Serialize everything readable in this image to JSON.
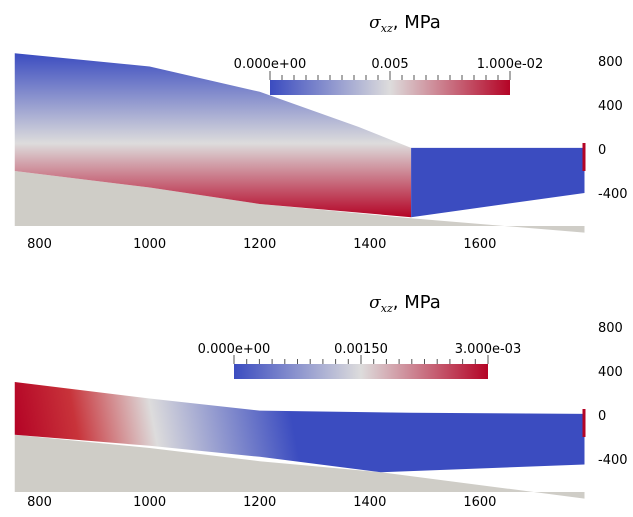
{
  "chart_data": [
    {
      "type": "heatmap",
      "title": {
        "symbol": "σ",
        "subscript": "xz",
        "unit": ", MPa"
      },
      "colorbar": {
        "range": [
          0.0,
          0.01
        ],
        "labels": [
          "0.000e+00",
          "0.005",
          "1.000e-02"
        ],
        "colors": [
          "#3b4cc0",
          "#dddcdc",
          "#b40426"
        ]
      },
      "x_ticks": [
        "800",
        "1000",
        "1200",
        "1400",
        "1600"
      ],
      "y_ticks": [
        "800",
        "400",
        "0",
        "-400"
      ],
      "xlim": [
        750,
        1800
      ],
      "ylim": [
        -700,
        900
      ],
      "domain_top": [
        [
          755,
          870
        ],
        [
          1000,
          750
        ],
        [
          1200,
          520
        ],
        [
          1380,
          200
        ],
        [
          1475,
          10
        ],
        [
          1790,
          10
        ]
      ],
      "domain_bottom": [
        [
          755,
          -200
        ],
        [
          1000,
          -350
        ],
        [
          1200,
          -500
        ],
        [
          1475,
          -620
        ],
        [
          1790,
          -400
        ]
      ],
      "base_surface": [
        [
          755,
          -200
        ],
        [
          1000,
          -350
        ],
        [
          1200,
          -500
        ],
        [
          1475,
          -630
        ],
        [
          1790,
          -760
        ]
      ],
      "stress_field": "increases with depth from the upper surface toward the base, max near x=1475; right section near zero"
    },
    {
      "type": "heatmap",
      "title": {
        "symbol": "σ",
        "subscript": "xz",
        "unit": ", MPa"
      },
      "colorbar": {
        "range": [
          0.0,
          0.003
        ],
        "labels": [
          "0.000e+00",
          "0.00150",
          "3.000e-03"
        ],
        "colors": [
          "#3b4cc0",
          "#dddcdc",
          "#b40426"
        ]
      },
      "x_ticks": [
        "800",
        "1000",
        "1200",
        "1400",
        "1600"
      ],
      "y_ticks": [
        "800",
        "400",
        "0",
        "-400"
      ],
      "xlim": [
        750,
        1800
      ],
      "ylim": [
        -700,
        900
      ],
      "domain_top": [
        [
          755,
          300
        ],
        [
          1000,
          150
        ],
        [
          1200,
          40
        ],
        [
          1475,
          20
        ],
        [
          1790,
          10
        ]
      ],
      "domain_bottom": [
        [
          755,
          -180
        ],
        [
          1000,
          -280
        ],
        [
          1200,
          -380
        ],
        [
          1420,
          -520
        ],
        [
          1790,
          -450
        ]
      ],
      "base_surface": [
        [
          755,
          -180
        ],
        [
          1000,
          -300
        ],
        [
          1200,
          -420
        ],
        [
          1420,
          -520
        ],
        [
          1790,
          -760
        ]
      ],
      "stress_field": "maximum at the lower-left corner, decreasing toward the upper right"
    }
  ]
}
